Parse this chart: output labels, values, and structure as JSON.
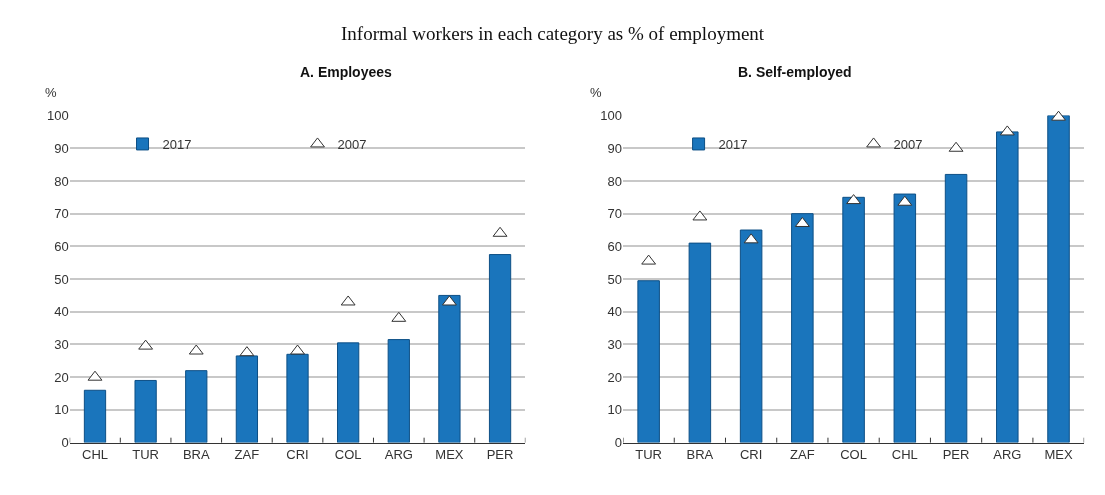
{
  "chart_data": [
    {
      "type": "bar",
      "title": "A. Employees",
      "ylabel": "%",
      "annotations": [
        "Informal workers in each category as % of employment"
      ],
      "categories": [
        "CHL",
        "TUR",
        "BRA",
        "ZAF",
        "CRI",
        "COL",
        "ARG",
        "MEX",
        "PER"
      ],
      "series": [
        {
          "name": "2017",
          "color": "#1a75bc",
          "values": [
            16,
            19,
            22,
            26.5,
            27,
            30.5,
            31.5,
            45,
            57.5
          ]
        },
        {
          "name": "2007",
          "type": "scatter",
          "marker": "triangle",
          "color": "#ffffff",
          "values": [
            20,
            29.5,
            28,
            27.5,
            28,
            43,
            38,
            43,
            64
          ]
        }
      ],
      "ylim": [
        0,
        100
      ],
      "yticks": [
        0,
        10,
        20,
        30,
        40,
        50,
        60,
        70,
        80,
        90,
        100
      ],
      "grid": "y",
      "legend": "top"
    },
    {
      "type": "bar",
      "title": "B. Self-employed",
      "ylabel": "%",
      "categories": [
        "TUR",
        "BRA",
        "CRI",
        "ZAF",
        "COL",
        "CHL",
        "PER",
        "ARG",
        "MEX"
      ],
      "series": [
        {
          "name": "2017",
          "color": "#1a75bc",
          "values": [
            49.5,
            61,
            65,
            70,
            75,
            76,
            82,
            95,
            100
          ]
        },
        {
          "name": "2007",
          "type": "scatter",
          "marker": "triangle",
          "color": "#ffffff",
          "values": [
            55.5,
            69,
            62,
            67,
            74,
            73.5,
            90,
            95,
            99.5
          ]
        }
      ],
      "ylim": [
        0,
        100
      ],
      "yticks": [
        0,
        10,
        20,
        30,
        40,
        50,
        60,
        70,
        80,
        90,
        100
      ],
      "grid": "y",
      "legend": "top"
    }
  ]
}
